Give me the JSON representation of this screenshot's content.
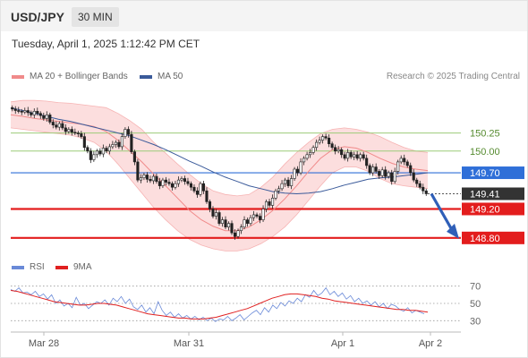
{
  "header": {
    "symbol": "USD/JPY",
    "timeframe": "30 MIN"
  },
  "datetime": "Tuesday, April 1, 2025 1:12:42 PM CET",
  "attribution": "Research © 2025 Trading Central",
  "legend_price": [
    {
      "label": "MA 20 + Bollinger Bands",
      "color": "#f08a8a"
    },
    {
      "label": "MA 50",
      "color": "#3a5a9a"
    }
  ],
  "legend_rsi": [
    {
      "label": "RSI",
      "color": "#6a8ad8"
    },
    {
      "label": "9MA",
      "color": "#e02020"
    }
  ],
  "chart_data": [
    {
      "type": "candlestick",
      "title": "USD/JPY 30 MIN",
      "x_labels": [
        "Mar 28",
        "Mar 31",
        "Apr 1",
        "Apr 2"
      ],
      "y_range": [
        148.6,
        150.9
      ],
      "levels": [
        {
          "value": 150.25,
          "label": "150.25",
          "style": "green-thin"
        },
        {
          "value": 150.0,
          "label": "150.00",
          "style": "green-thin"
        },
        {
          "value": 149.7,
          "label": "149.70",
          "style": "blue"
        },
        {
          "value": 149.41,
          "label": "149.41",
          "style": "current-price"
        },
        {
          "value": 149.2,
          "label": "149.20",
          "style": "red-thick"
        },
        {
          "value": 148.8,
          "label": "148.80",
          "style": "red-thick"
        }
      ],
      "close": [
        150.58,
        150.56,
        150.55,
        150.54,
        150.56,
        150.53,
        150.5,
        150.55,
        150.52,
        150.49,
        150.45,
        150.5,
        150.4,
        150.36,
        150.33,
        150.38,
        150.32,
        150.27,
        150.3,
        150.26,
        150.25,
        150.24,
        150.2,
        150.05,
        150.0,
        149.88,
        149.95,
        150.0,
        149.96,
        150.04,
        150.0,
        150.06,
        150.09,
        150.12,
        150.06,
        150.2,
        150.3,
        150.23,
        149.99,
        149.85,
        149.6,
        149.63,
        149.67,
        149.61,
        149.59,
        149.65,
        149.58,
        149.52,
        149.6,
        149.57,
        149.55,
        149.5,
        149.55,
        149.6,
        149.62,
        149.58,
        149.55,
        149.5,
        149.45,
        149.4,
        149.55,
        149.45,
        149.3,
        149.2,
        149.1,
        149.15,
        149.0,
        149.05,
        148.95,
        149.0,
        148.87,
        148.82,
        148.9,
        148.95,
        149.05,
        149.0,
        149.08,
        149.12,
        149.1,
        149.05,
        149.2,
        149.3,
        149.25,
        149.35,
        149.45,
        149.48,
        149.55,
        149.6,
        149.52,
        149.62,
        149.75,
        149.7,
        149.85,
        149.9,
        149.95,
        149.98,
        150.05,
        150.12,
        150.15,
        150.2,
        150.18,
        150.1,
        150.05,
        150.0,
        150.02,
        149.95,
        149.9,
        149.98,
        149.92,
        149.95,
        149.9,
        149.95,
        149.9,
        149.8,
        149.7,
        149.78,
        149.72,
        149.66,
        149.74,
        149.65,
        149.7,
        149.58,
        149.72,
        149.85,
        149.9,
        149.85,
        149.8,
        149.7,
        149.6,
        149.55,
        149.5,
        149.45,
        149.41
      ],
      "ma50": [
        150.6,
        150.56,
        150.52,
        150.48,
        150.44,
        150.41,
        150.37,
        150.33,
        150.29,
        150.25,
        150.21,
        150.15,
        150.09,
        150.02,
        149.94,
        149.86,
        149.79,
        149.71,
        149.64,
        149.58,
        149.52,
        149.48,
        149.44,
        149.42,
        149.41,
        149.42,
        149.44,
        149.48,
        149.53,
        149.57,
        149.61,
        149.63,
        149.64,
        149.66,
        149.68,
        149.7
      ],
      "bb_mid": [
        150.5,
        150.48,
        150.45,
        150.43,
        150.41,
        150.39,
        150.37,
        150.34,
        150.27,
        150.15,
        150.0,
        149.85,
        149.68,
        149.52,
        149.35,
        149.18,
        149.05,
        148.96,
        148.9,
        148.9,
        148.95,
        149.05,
        149.18,
        149.34,
        149.52,
        149.72,
        149.9,
        150.02,
        150.06,
        150.04,
        149.98,
        149.9,
        149.83,
        149.78,
        149.75,
        149.73
      ],
      "bb_upper": [
        150.68,
        150.7,
        150.7,
        150.69,
        150.67,
        150.66,
        150.64,
        150.62,
        150.6,
        150.52,
        150.42,
        150.3,
        150.12,
        149.97,
        149.82,
        149.68,
        149.55,
        149.45,
        149.4,
        149.38,
        149.4,
        149.5,
        149.64,
        149.82,
        149.98,
        150.12,
        150.24,
        150.3,
        150.32,
        150.3,
        150.26,
        150.2,
        150.12,
        150.05,
        150.0,
        149.98
      ],
      "bb_lower": [
        150.32,
        150.3,
        150.28,
        150.26,
        150.24,
        150.22,
        150.18,
        150.12,
        150.0,
        149.82,
        149.62,
        149.42,
        149.22,
        149.05,
        148.9,
        148.78,
        148.7,
        148.65,
        148.62,
        148.62,
        148.65,
        148.72,
        148.82,
        148.95,
        149.12,
        149.32,
        149.52,
        149.7,
        149.78,
        149.78,
        149.72,
        149.62,
        149.55,
        149.52,
        149.5,
        149.48
      ],
      "forecast": {
        "from": 149.41,
        "to": 148.8
      }
    },
    {
      "type": "line",
      "title": "RSI",
      "y_ticks": [
        70,
        50,
        30
      ],
      "y_range": [
        20,
        80
      ],
      "series": [
        {
          "name": "RSI",
          "values": [
            66,
            64,
            68,
            62,
            63,
            60,
            64,
            58,
            61,
            55,
            60,
            50,
            54,
            47,
            50,
            45,
            57,
            48,
            50,
            44,
            48,
            52,
            50,
            54,
            48,
            56,
            52,
            58,
            50,
            55,
            46,
            43,
            48,
            40,
            45,
            38,
            52,
            42,
            36,
            40,
            34,
            38,
            33,
            36,
            32,
            35,
            31,
            34,
            30,
            33,
            29,
            32,
            31,
            35,
            30,
            33,
            37,
            31,
            35,
            39,
            42,
            37,
            45,
            40,
            48,
            44,
            51,
            47,
            53,
            50,
            56,
            52,
            60,
            57,
            65,
            59,
            62,
            68,
            60,
            64,
            58,
            62,
            55,
            59,
            52,
            56,
            50,
            53,
            48,
            52,
            46,
            50,
            44,
            49,
            47,
            43,
            41,
            45,
            39,
            42,
            40,
            38
          ]
        },
        {
          "name": "9MA",
          "values": [
            65,
            64,
            62,
            60,
            58,
            56,
            54,
            52,
            51,
            50,
            49,
            48,
            48,
            49,
            50,
            50,
            49,
            48,
            46,
            44,
            42,
            40,
            38,
            37,
            36,
            35,
            34,
            33,
            33,
            32,
            32,
            32,
            33,
            34,
            36,
            38,
            40,
            42,
            44,
            47,
            50,
            53,
            56,
            58,
            60,
            61,
            61,
            60,
            59,
            58,
            56,
            55,
            53,
            52,
            51,
            50,
            49,
            48,
            47,
            46,
            45,
            44,
            43,
            43,
            42,
            42,
            41,
            40
          ]
        }
      ]
    }
  ]
}
